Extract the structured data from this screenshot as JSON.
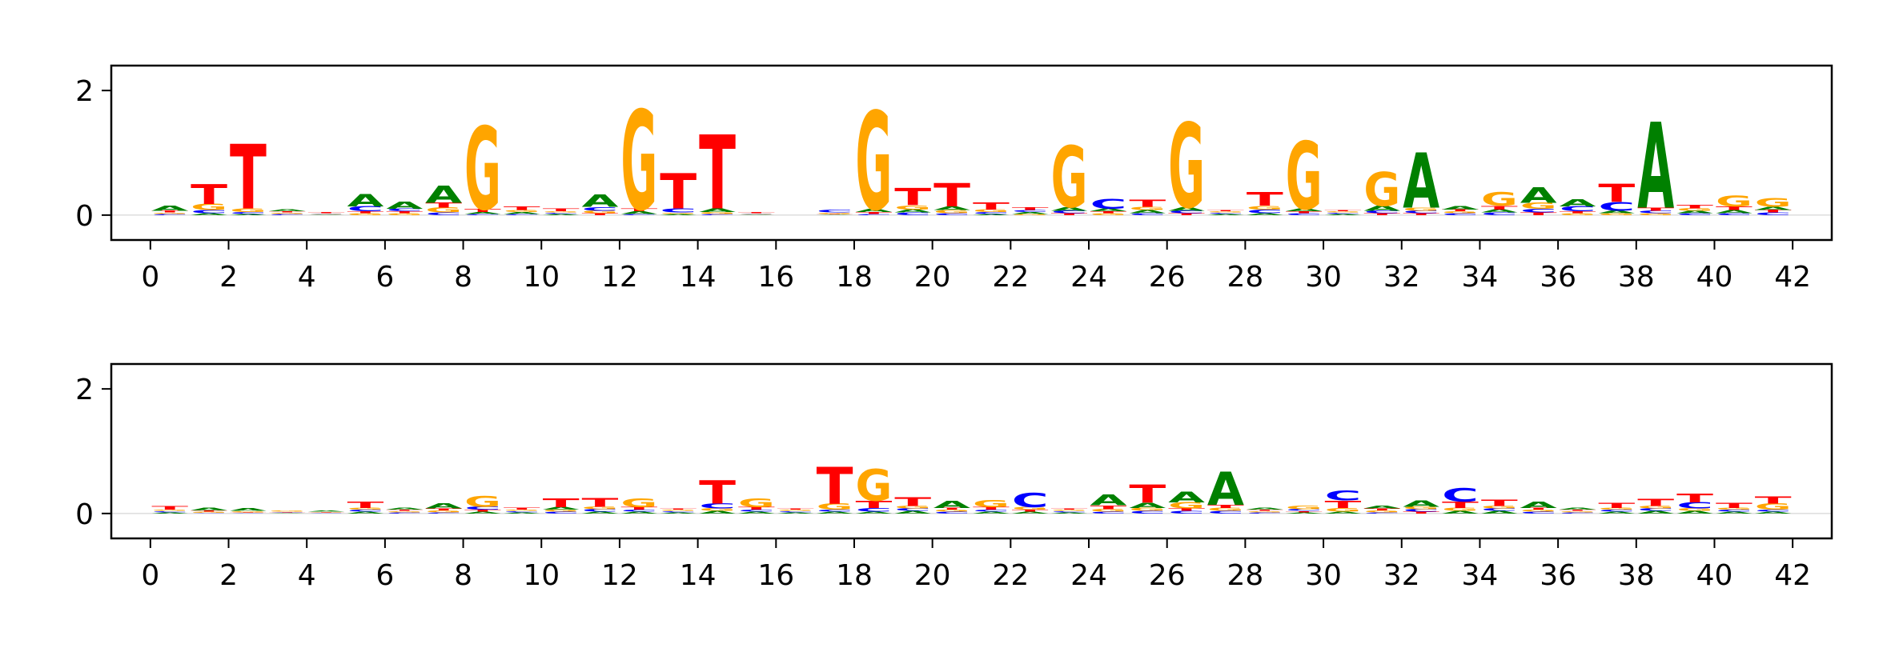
{
  "colors": {
    "A": "#008000",
    "C": "#0000ff",
    "G": "#ffa500",
    "T": "#ff0000",
    "axis": "#000000",
    "background": "#ffffff"
  },
  "chart_data": [
    {
      "type": "sequence-logo",
      "title": "",
      "xlabel": "",
      "ylabel": "",
      "xlim": [
        -1,
        43
      ],
      "ylim": [
        -0.4,
        2.4
      ],
      "yticks": [
        0,
        2
      ],
      "xticks": [
        0,
        2,
        4,
        6,
        8,
        10,
        12,
        14,
        16,
        18,
        20,
        22,
        24,
        26,
        28,
        30,
        32,
        34,
        36,
        38,
        40,
        42
      ],
      "positions": [
        {
          "pos": 0.5,
          "heights": {
            "A": 0.08,
            "C": 0.02,
            "G": 0.02,
            "T": 0.03
          }
        },
        {
          "pos": 1.5,
          "heights": {
            "A": 0.03,
            "C": 0.05,
            "G": 0.1,
            "T": 0.32
          }
        },
        {
          "pos": 2.5,
          "heights": {
            "A": 0.02,
            "C": 0.03,
            "G": 0.06,
            "T": 1.05
          }
        },
        {
          "pos": 3.5,
          "heights": {
            "A": 0.03,
            "C": 0.02,
            "G": 0.02,
            "T": 0.02
          }
        },
        {
          "pos": 4.5,
          "heights": {
            "A": 0.01,
            "C": 0.01,
            "G": 0.01,
            "T": 0.02
          }
        },
        {
          "pos": 5.5,
          "heights": {
            "A": 0.2,
            "C": 0.08,
            "G": 0.03,
            "T": 0.03
          }
        },
        {
          "pos": 6.5,
          "heights": {
            "A": 0.12,
            "C": 0.04,
            "G": 0.03,
            "T": 0.03
          }
        },
        {
          "pos": 7.5,
          "heights": {
            "A": 0.28,
            "C": 0.04,
            "G": 0.08,
            "T": 0.08
          }
        },
        {
          "pos": 8.5,
          "heights": {
            "A": 0.03,
            "C": 0.02,
            "G": 1.35,
            "T": 0.05
          }
        },
        {
          "pos": 9.5,
          "heights": {
            "A": 0.03,
            "C": 0.02,
            "G": 0.03,
            "T": 0.06
          }
        },
        {
          "pos": 10.5,
          "heights": {
            "A": 0.02,
            "C": 0.02,
            "G": 0.02,
            "T": 0.04
          }
        },
        {
          "pos": 11.5,
          "heights": {
            "A": 0.2,
            "C": 0.06,
            "G": 0.04,
            "T": 0.03
          }
        },
        {
          "pos": 12.5,
          "heights": {
            "A": 0.04,
            "C": 0.02,
            "G": 1.62,
            "T": 0.04
          }
        },
        {
          "pos": 13.5,
          "heights": {
            "A": 0.02,
            "C": 0.07,
            "G": 0.02,
            "T": 0.58
          }
        },
        {
          "pos": 14.5,
          "heights": {
            "A": 0.06,
            "C": 0.02,
            "G": 0.03,
            "T": 1.2
          }
        },
        {
          "pos": 15.5,
          "heights": {
            "A": 0.01,
            "C": 0.01,
            "G": 0.01,
            "T": 0.02
          }
        },
        {
          "pos": 17.5,
          "heights": {
            "A": 0.01,
            "C": 0.04,
            "G": 0.02,
            "T": 0.01
          }
        },
        {
          "pos": 18.5,
          "heights": {
            "A": 0.05,
            "C": 0.02,
            "G": 1.6,
            "T": 0.03
          }
        },
        {
          "pos": 19.5,
          "heights": {
            "A": 0.05,
            "C": 0.04,
            "G": 0.07,
            "T": 0.28
          }
        },
        {
          "pos": 20.5,
          "heights": {
            "A": 0.06,
            "C": 0.03,
            "G": 0.05,
            "T": 0.38
          }
        },
        {
          "pos": 21.5,
          "heights": {
            "A": 0.02,
            "C": 0.03,
            "G": 0.04,
            "T": 0.12
          }
        },
        {
          "pos": 22.5,
          "heights": {
            "A": 0.03,
            "C": 0.03,
            "G": 0.02,
            "T": 0.04
          }
        },
        {
          "pos": 23.5,
          "heights": {
            "A": 0.06,
            "C": 0.04,
            "G": 1.0,
            "T": 0.03
          }
        },
        {
          "pos": 24.5,
          "heights": {
            "A": 0.04,
            "C": 0.16,
            "G": 0.03,
            "T": 0.03
          }
        },
        {
          "pos": 25.5,
          "heights": {
            "A": 0.05,
            "C": 0.03,
            "G": 0.05,
            "T": 0.12
          }
        },
        {
          "pos": 26.5,
          "heights": {
            "A": 0.06,
            "C": 0.04,
            "G": 1.38,
            "T": 0.03
          }
        },
        {
          "pos": 27.5,
          "heights": {
            "A": 0.02,
            "C": 0.02,
            "G": 0.02,
            "T": 0.02
          }
        },
        {
          "pos": 28.5,
          "heights": {
            "A": 0.03,
            "C": 0.06,
            "G": 0.06,
            "T": 0.22
          }
        },
        {
          "pos": 29.5,
          "heights": {
            "A": 0.04,
            "C": 0.03,
            "G": 1.1,
            "T": 0.03
          }
        },
        {
          "pos": 30.5,
          "heights": {
            "A": 0.02,
            "C": 0.02,
            "G": 0.02,
            "T": 0.02
          }
        },
        {
          "pos": 31.5,
          "heights": {
            "A": 0.08,
            "C": 0.04,
            "G": 0.55,
            "T": 0.03
          }
        },
        {
          "pos": 32.5,
          "heights": {
            "A": 0.9,
            "C": 0.04,
            "G": 0.05,
            "T": 0.03
          }
        },
        {
          "pos": 33.5,
          "heights": {
            "A": 0.06,
            "C": 0.03,
            "G": 0.03,
            "T": 0.03
          }
        },
        {
          "pos": 34.5,
          "heights": {
            "A": 0.05,
            "C": 0.04,
            "G": 0.22,
            "T": 0.06
          }
        },
        {
          "pos": 35.5,
          "heights": {
            "A": 0.25,
            "C": 0.06,
            "G": 0.1,
            "T": 0.04
          }
        },
        {
          "pos": 36.5,
          "heights": {
            "A": 0.12,
            "C": 0.08,
            "G": 0.03,
            "T": 0.03
          }
        },
        {
          "pos": 37.5,
          "heights": {
            "A": 0.04,
            "C": 0.14,
            "G": 0.03,
            "T": 0.3
          }
        },
        {
          "pos": 38.5,
          "heights": {
            "A": 1.4,
            "C": 0.04,
            "G": 0.03,
            "T": 0.05
          }
        },
        {
          "pos": 39.5,
          "heights": {
            "A": 0.04,
            "C": 0.03,
            "G": 0.04,
            "T": 0.06
          }
        },
        {
          "pos": 40.5,
          "heights": {
            "A": 0.05,
            "C": 0.03,
            "G": 0.18,
            "T": 0.06
          }
        },
        {
          "pos": 41.5,
          "heights": {
            "A": 0.05,
            "C": 0.04,
            "G": 0.14,
            "T": 0.04
          }
        }
      ]
    },
    {
      "type": "sequence-logo",
      "title": "",
      "xlabel": "",
      "ylabel": "",
      "xlim": [
        -1,
        43
      ],
      "ylim": [
        -0.4,
        2.4
      ],
      "yticks": [
        0,
        2
      ],
      "xticks": [
        0,
        2,
        4,
        6,
        8,
        10,
        12,
        14,
        16,
        18,
        20,
        22,
        24,
        26,
        28,
        30,
        32,
        34,
        36,
        38,
        40,
        42
      ],
      "positions": [
        {
          "pos": 0.5,
          "heights": {
            "A": 0.02,
            "C": 0.02,
            "G": 0.02,
            "T": 0.06
          }
        },
        {
          "pos": 1.5,
          "heights": {
            "A": 0.04,
            "C": 0.01,
            "G": 0.02,
            "T": 0.02
          }
        },
        {
          "pos": 2.5,
          "heights": {
            "A": 0.04,
            "C": 0.01,
            "G": 0.02,
            "T": 0.01
          }
        },
        {
          "pos": 3.5,
          "heights": {
            "A": 0.01,
            "C": 0.01,
            "G": 0.02,
            "T": 0.01
          }
        },
        {
          "pos": 4.5,
          "heights": {
            "A": 0.02,
            "C": 0.01,
            "G": 0.01,
            "T": 0.01
          }
        },
        {
          "pos": 5.5,
          "heights": {
            "A": 0.03,
            "C": 0.03,
            "G": 0.03,
            "T": 0.1
          }
        },
        {
          "pos": 6.5,
          "heights": {
            "A": 0.03,
            "C": 0.02,
            "G": 0.02,
            "T": 0.02
          }
        },
        {
          "pos": 7.5,
          "heights": {
            "A": 0.08,
            "C": 0.02,
            "G": 0.03,
            "T": 0.03
          }
        },
        {
          "pos": 8.5,
          "heights": {
            "A": 0.03,
            "C": 0.05,
            "G": 0.18,
            "T": 0.03
          }
        },
        {
          "pos": 9.5,
          "heights": {
            "A": 0.02,
            "C": 0.02,
            "G": 0.02,
            "T": 0.03
          }
        },
        {
          "pos": 10.5,
          "heights": {
            "A": 0.04,
            "C": 0.03,
            "G": 0.03,
            "T": 0.14
          }
        },
        {
          "pos": 11.5,
          "heights": {
            "A": 0.03,
            "C": 0.04,
            "G": 0.04,
            "T": 0.14
          }
        },
        {
          "pos": 12.5,
          "heights": {
            "A": 0.03,
            "C": 0.03,
            "G": 0.14,
            "T": 0.04
          }
        },
        {
          "pos": 13.5,
          "heights": {
            "A": 0.02,
            "C": 0.02,
            "G": 0.02,
            "T": 0.02
          }
        },
        {
          "pos": 14.5,
          "heights": {
            "A": 0.04,
            "C": 0.08,
            "G": 0.04,
            "T": 0.38
          }
        },
        {
          "pos": 15.5,
          "heights": {
            "A": 0.03,
            "C": 0.03,
            "G": 0.14,
            "T": 0.04
          }
        },
        {
          "pos": 16.5,
          "heights": {
            "A": 0.02,
            "C": 0.02,
            "G": 0.02,
            "T": 0.02
          }
        },
        {
          "pos": 17.5,
          "heights": {
            "A": 0.03,
            "C": 0.03,
            "G": 0.1,
            "T": 0.6
          }
        },
        {
          "pos": 18.5,
          "heights": {
            "A": 0.03,
            "C": 0.06,
            "G": 0.52,
            "T": 0.12
          }
        },
        {
          "pos": 19.5,
          "heights": {
            "A": 0.04,
            "C": 0.04,
            "G": 0.04,
            "T": 0.14
          }
        },
        {
          "pos": 20.5,
          "heights": {
            "A": 0.12,
            "C": 0.03,
            "G": 0.03,
            "T": 0.03
          }
        },
        {
          "pos": 21.5,
          "heights": {
            "A": 0.03,
            "C": 0.03,
            "G": 0.12,
            "T": 0.04
          }
        },
        {
          "pos": 22.5,
          "heights": {
            "A": 0.03,
            "C": 0.24,
            "G": 0.04,
            "T": 0.03
          }
        },
        {
          "pos": 23.5,
          "heights": {
            "A": 0.02,
            "C": 0.02,
            "G": 0.02,
            "T": 0.02
          }
        },
        {
          "pos": 24.5,
          "heights": {
            "A": 0.18,
            "C": 0.03,
            "G": 0.04,
            "T": 0.06
          }
        },
        {
          "pos": 25.5,
          "heights": {
            "A": 0.08,
            "C": 0.04,
            "G": 0.05,
            "T": 0.3
          }
        },
        {
          "pos": 26.5,
          "heights": {
            "A": 0.18,
            "C": 0.04,
            "G": 0.1,
            "T": 0.04
          }
        },
        {
          "pos": 27.5,
          "heights": {
            "A": 0.54,
            "C": 0.04,
            "G": 0.05,
            "T": 0.05
          }
        },
        {
          "pos": 28.5,
          "heights": {
            "A": 0.03,
            "C": 0.02,
            "G": 0.02,
            "T": 0.02
          }
        },
        {
          "pos": 29.5,
          "heights": {
            "A": 0.02,
            "C": 0.03,
            "G": 0.06,
            "T": 0.02
          }
        },
        {
          "pos": 30.5,
          "heights": {
            "A": 0.03,
            "C": 0.16,
            "G": 0.06,
            "T": 0.12
          }
        },
        {
          "pos": 31.5,
          "heights": {
            "A": 0.04,
            "C": 0.02,
            "G": 0.03,
            "T": 0.03
          }
        },
        {
          "pos": 32.5,
          "heights": {
            "A": 0.1,
            "C": 0.04,
            "G": 0.04,
            "T": 0.03
          }
        },
        {
          "pos": 33.5,
          "heights": {
            "A": 0.04,
            "C": 0.22,
            "G": 0.05,
            "T": 0.1
          }
        },
        {
          "pos": 34.5,
          "heights": {
            "A": 0.04,
            "C": 0.04,
            "G": 0.04,
            "T": 0.1
          }
        },
        {
          "pos": 35.5,
          "heights": {
            "A": 0.1,
            "C": 0.03,
            "G": 0.03,
            "T": 0.03
          }
        },
        {
          "pos": 36.5,
          "heights": {
            "A": 0.03,
            "C": 0.02,
            "G": 0.02,
            "T": 0.02
          }
        },
        {
          "pos": 37.5,
          "heights": {
            "A": 0.03,
            "C": 0.03,
            "G": 0.03,
            "T": 0.08
          }
        },
        {
          "pos": 38.5,
          "heights": {
            "A": 0.04,
            "C": 0.04,
            "G": 0.04,
            "T": 0.12
          }
        },
        {
          "pos": 39.5,
          "heights": {
            "A": 0.04,
            "C": 0.1,
            "G": 0.04,
            "T": 0.14
          }
        },
        {
          "pos": 40.5,
          "heights": {
            "A": 0.03,
            "C": 0.03,
            "G": 0.03,
            "T": 0.08
          }
        },
        {
          "pos": 41.5,
          "heights": {
            "A": 0.03,
            "C": 0.03,
            "G": 0.1,
            "T": 0.12
          }
        }
      ]
    }
  ]
}
